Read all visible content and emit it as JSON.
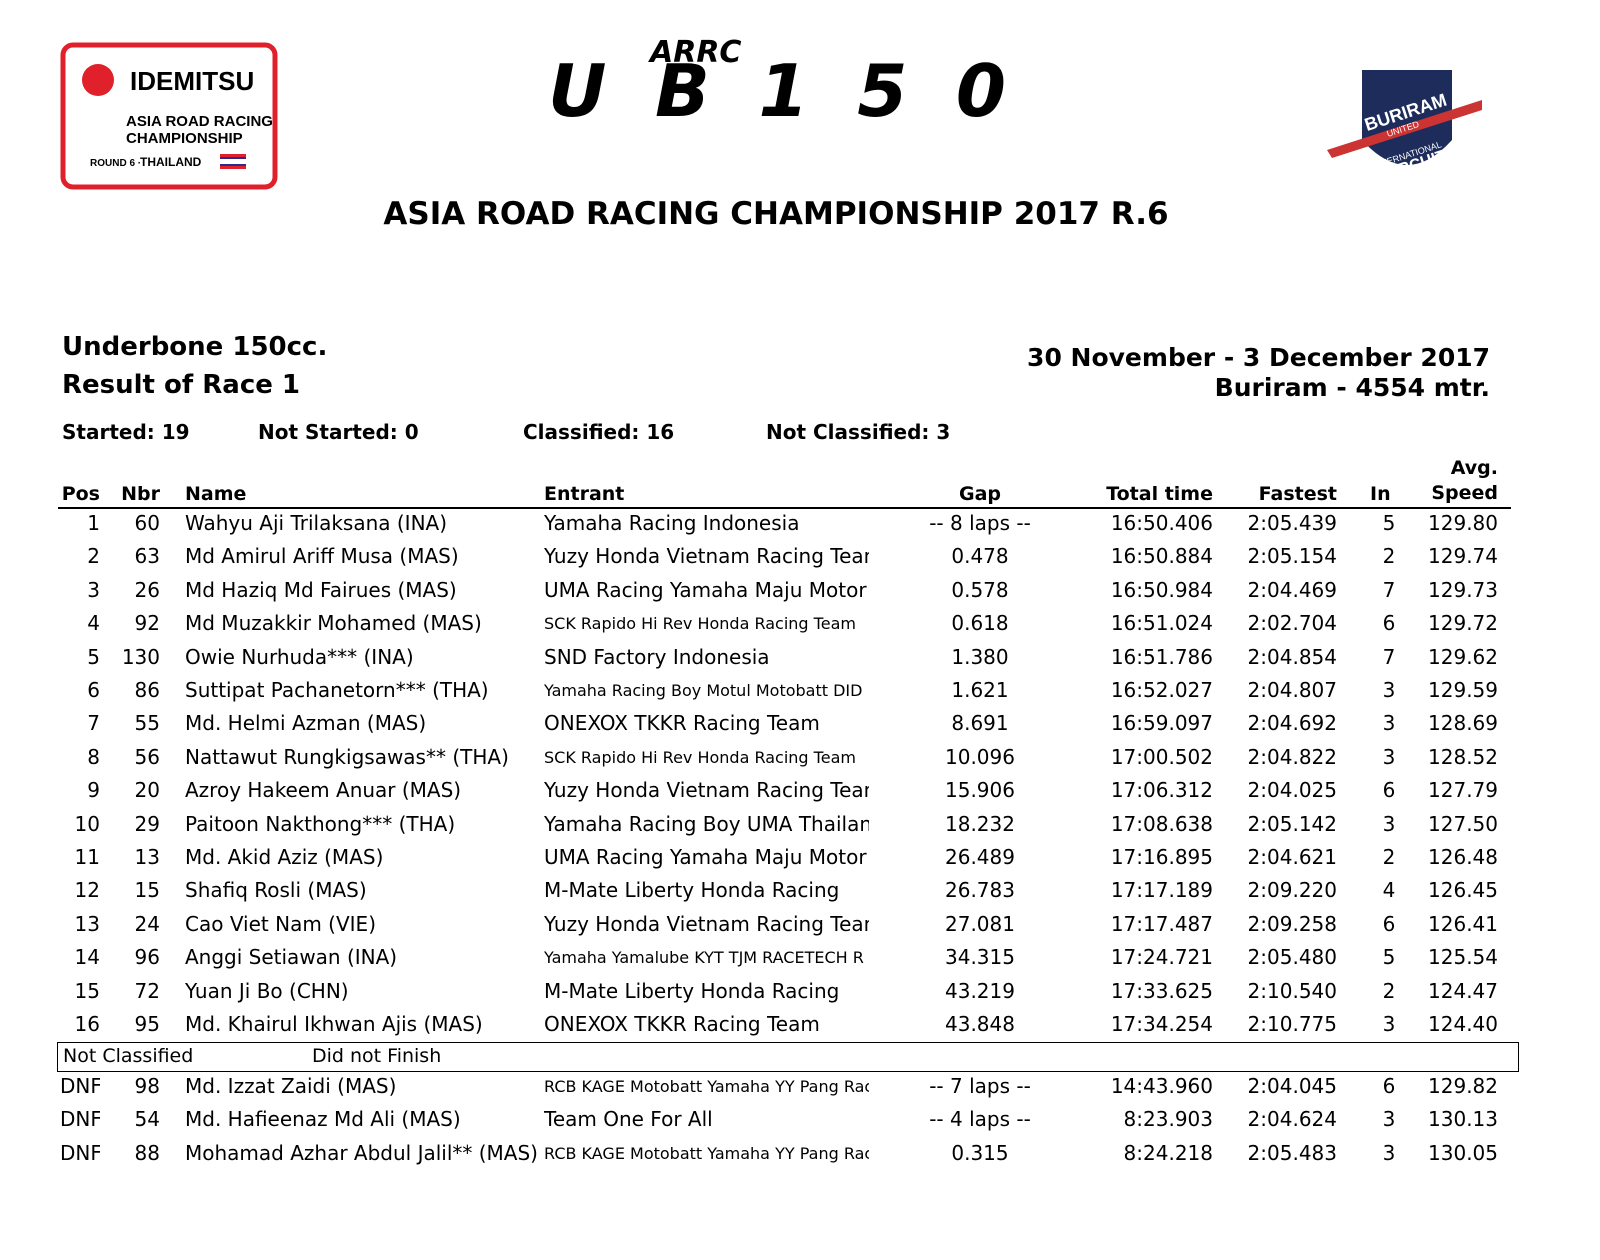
{
  "logos": {
    "left": {
      "brand": "IDEMITSU",
      "line1": "ASIA ROAD RACING",
      "line2": "CHAMPIONSHIP",
      "round": "ROUND 6 ·",
      "country": "THAILAND"
    },
    "center": {
      "top": "ARRC",
      "main": "UB150"
    },
    "right": {
      "line1": "BURIRAM",
      "line2": "UNITED",
      "line3": "INTERNATIONAL",
      "line4": "CIRCUIT"
    }
  },
  "header": {
    "title": "ASIA ROAD RACING CHAMPIONSHIP 2017 R.6",
    "class": "Underbone 150cc.",
    "session": "Result of Race 1",
    "dates": "30 November - 3 December 2017",
    "venue": "Buriram - 4554 mtr."
  },
  "stats": [
    "Started: 19",
    "Not Started: 0",
    "Classified: 16",
    "Not Classified: 3"
  ],
  "table": {
    "columns": [
      "Pos",
      "Nbr",
      "Name",
      "Entrant",
      "Gap",
      "Total time",
      "Fastest",
      "In",
      "Avg. Speed"
    ],
    "rows": [
      [
        "1",
        "60",
        "Wahyu Aji Trilaksana (INA)",
        "Yamaha Racing Indonesia",
        "-- 8 laps --",
        "16:50.406",
        "2:05.439",
        "5",
        "129.80"
      ],
      [
        "2",
        "63",
        "Md Amirul Ariff Musa (MAS)",
        "Yuzy Honda Vietnam Racing Team",
        "0.478",
        "16:50.884",
        "2:05.154",
        "2",
        "129.74"
      ],
      [
        "3",
        "26",
        "Md Haziq Md Fairues (MAS)",
        "UMA Racing Yamaha Maju Motor",
        "0.578",
        "16:50.984",
        "2:04.469",
        "7",
        "129.73"
      ],
      [
        "4",
        "92",
        "Md Muzakkir Mohamed (MAS)",
        "SCK Rapido Hi Rev Honda Racing Team",
        "0.618",
        "16:51.024",
        "2:02.704",
        "6",
        "129.72"
      ],
      [
        "5",
        "130",
        "Owie Nurhuda*** (INA)",
        "SND Factory Indonesia",
        "1.380",
        "16:51.786",
        "2:04.854",
        "7",
        "129.62"
      ],
      [
        "6",
        "86",
        "Suttipat Pachanetorn*** (THA)",
        "Yamaha Racing Boy Motul Motobatt DID",
        "1.621",
        "16:52.027",
        "2:04.807",
        "3",
        "129.59"
      ],
      [
        "7",
        "55",
        "Md. Helmi Azman (MAS)",
        "ONEXOX TKKR Racing Team",
        "8.691",
        "16:59.097",
        "2:04.692",
        "3",
        "128.69"
      ],
      [
        "8",
        "56",
        "Nattawut Rungkigsawas** (THA)",
        "SCK Rapido Hi Rev Honda Racing Team",
        "10.096",
        "17:00.502",
        "2:04.822",
        "3",
        "128.52"
      ],
      [
        "9",
        "20",
        "Azroy Hakeem Anuar (MAS)",
        "Yuzy Honda Vietnam Racing Team",
        "15.906",
        "17:06.312",
        "2:04.025",
        "6",
        "127.79"
      ],
      [
        "10",
        "29",
        "Paitoon Nakthong*** (THA)",
        "Yamaha Racing Boy UMA Thailand",
        "18.232",
        "17:08.638",
        "2:05.142",
        "3",
        "127.50"
      ],
      [
        "11",
        "13",
        "Md. Akid Aziz (MAS)",
        "UMA Racing Yamaha Maju Motor",
        "26.489",
        "17:16.895",
        "2:04.621",
        "2",
        "126.48"
      ],
      [
        "12",
        "15",
        "Shafiq Rosli (MAS)",
        "M-Mate Liberty Honda Racing",
        "26.783",
        "17:17.189",
        "2:09.220",
        "4",
        "126.45"
      ],
      [
        "13",
        "24",
        "Cao Viet Nam (VIE)",
        "Yuzy Honda Vietnam Racing Team",
        "27.081",
        "17:17.487",
        "2:09.258",
        "6",
        "126.41"
      ],
      [
        "14",
        "96",
        "Anggi Setiawan (INA)",
        "Yamaha Yamalube KYT TJM RACETECH R",
        "34.315",
        "17:24.721",
        "2:05.480",
        "5",
        "125.54"
      ],
      [
        "15",
        "72",
        "Yuan Ji Bo (CHN)",
        "M-Mate Liberty Honda Racing",
        "43.219",
        "17:33.625",
        "2:10.540",
        "2",
        "124.47"
      ],
      [
        "16",
        "95",
        "Md. Khairul Ikhwan Ajis (MAS)",
        "ONEXOX TKKR Racing Team",
        "43.848",
        "17:34.254",
        "2:10.775",
        "3",
        "124.40"
      ]
    ],
    "not_classified": {
      "label": "Not Classified",
      "reason": "Did not Finish",
      "rows": [
        [
          "DNF",
          "98",
          "Md. Izzat Zaidi (MAS)",
          "RCB KAGE Motobatt Yamaha YY Pang Racing",
          "-- 7 laps --",
          "14:43.960",
          "2:04.045",
          "6",
          "129.82"
        ],
        [
          "DNF",
          "54",
          "Md. Hafieenaz Md Ali (MAS)",
          "Team One For All",
          "-- 4 laps --",
          "8:23.903",
          "2:04.624",
          "3",
          "130.13"
        ],
        [
          "DNF",
          "88",
          "Mohamad Azhar Abdul Jalil** (MAS)",
          "RCB KAGE Motobatt Yamaha YY Pang Racing",
          "0.315",
          "8:24.218",
          "2:05.483",
          "3",
          "130.05"
        ]
      ]
    }
  }
}
